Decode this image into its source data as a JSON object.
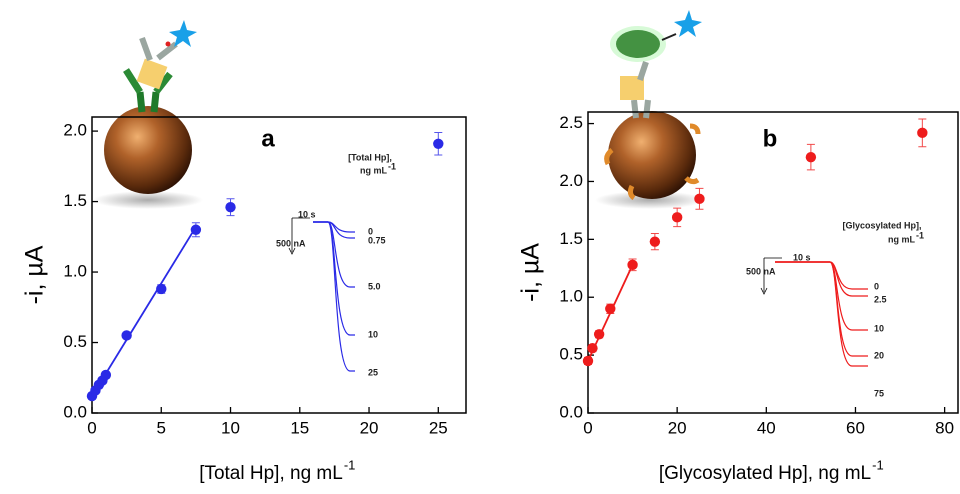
{
  "chart_data": [
    {
      "type": "scatter",
      "panel": "a",
      "xlabel": "[Total Hp], ng mL",
      "xlabel_sup": "-1",
      "ylabel": "-i, µA",
      "xlim": [
        0,
        27
      ],
      "ylim": [
        0,
        2.1
      ],
      "xticks": [
        0,
        5,
        10,
        15,
        20,
        25
      ],
      "yticks": [
        {
          "value": 0,
          "label": "0.0"
        },
        {
          "value": 0.5,
          "label": "0.5"
        },
        {
          "value": 1,
          "label": "1.0"
        },
        {
          "value": 1.5,
          "label": "1.5"
        },
        {
          "value": 2,
          "label": "2.0"
        }
      ],
      "series": [
        {
          "type": "scatter",
          "color": "#2a2ae6",
          "x": [
            0,
            0.25,
            0.5,
            0.75,
            1,
            2.5,
            5,
            7.5,
            10,
            25
          ],
          "values": [
            0.12,
            0.16,
            0.2,
            0.23,
            0.27,
            0.55,
            0.88,
            1.3,
            1.46,
            1.91
          ],
          "errors": [
            0.02,
            0.02,
            0.02,
            0.02,
            0.02,
            0.02,
            0.03,
            0.05,
            0.06,
            0.08
          ]
        },
        {
          "type": "line",
          "color": "#2a2ae6",
          "x": [
            0,
            7.5
          ],
          "values": [
            0.12,
            1.32
          ]
        }
      ],
      "inset": {
        "color": "#2a2ae6",
        "title": "[Total Hp],",
        "unit": "ng mL",
        "unit_sup": "-1",
        "time_scale": "10 s",
        "current_scale": "500 nA",
        "labels": [
          "0",
          "0.75",
          "5.0",
          "10",
          "25"
        ]
      }
    },
    {
      "type": "scatter",
      "panel": "b",
      "xlabel": "[Glycosylated Hp], ng mL",
      "xlabel_sup": "-1",
      "ylabel": "-i, µA",
      "xlim": [
        0,
        83
      ],
      "ylim": [
        0,
        2.6
      ],
      "xticks": [
        0,
        20,
        40,
        60,
        80
      ],
      "yticks": [
        {
          "value": 0,
          "label": "0.0"
        },
        {
          "value": 0.5,
          "label": "0.5"
        },
        {
          "value": 1,
          "label": "1.0"
        },
        {
          "value": 1.5,
          "label": "1.5"
        },
        {
          "value": 2,
          "label": "2.0"
        },
        {
          "value": 2.5,
          "label": "2.5"
        }
      ],
      "series": [
        {
          "type": "scatter",
          "color": "#ee1c1c",
          "x": [
            0,
            1,
            2.5,
            5,
            10,
            15,
            20,
            25,
            50,
            75
          ],
          "values": [
            0.45,
            0.56,
            0.68,
            0.9,
            1.28,
            1.48,
            1.69,
            1.85,
            2.21,
            2.42
          ],
          "errors": [
            0.03,
            0.03,
            0.03,
            0.04,
            0.05,
            0.07,
            0.08,
            0.09,
            0.11,
            0.12
          ]
        },
        {
          "type": "line",
          "color": "#ee1c1c",
          "x": [
            0,
            10
          ],
          "values": [
            0.45,
            1.28
          ]
        }
      ],
      "inset": {
        "color": "#ee1c1c",
        "title": "[Glycosylated Hp],",
        "unit": "ng mL",
        "unit_sup": "-1",
        "time_scale": "10 s",
        "current_scale": "500 nA",
        "labels": [
          "0",
          "2.5",
          "10",
          "20",
          "75"
        ]
      }
    }
  ]
}
